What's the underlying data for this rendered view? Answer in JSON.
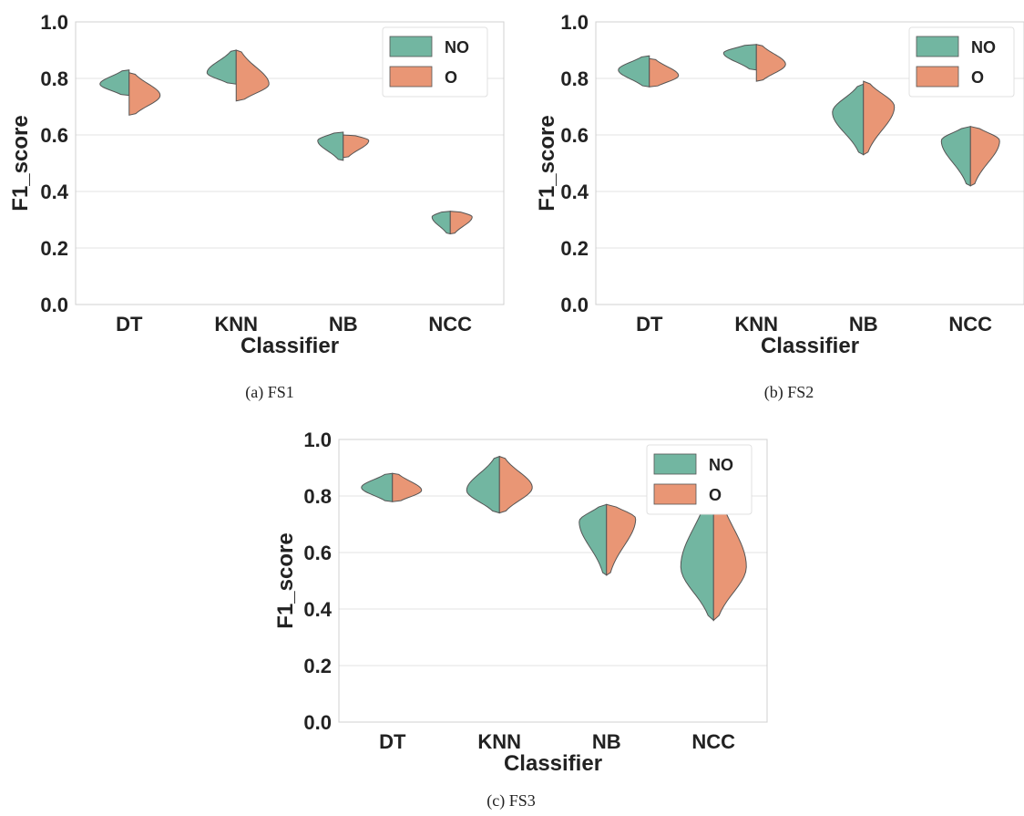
{
  "colors": {
    "NO": "#72b6a1",
    "O": "#e99675"
  },
  "chart_data": [
    {
      "type": "violin",
      "caption": "(a)  FS1",
      "xlabel": "Classifier",
      "ylabel": "F1_score",
      "ylim": [
        0.0,
        1.0
      ],
      "yticks": [
        "0.0",
        "0.2",
        "0.4",
        "0.6",
        "0.8",
        "1.0"
      ],
      "categories": [
        "DT",
        "KNN",
        "NB",
        "NCC"
      ],
      "legend": {
        "placement": "top-right",
        "entries": [
          "NO",
          "O"
        ]
      },
      "grid": true,
      "series": [
        {
          "name": "NO",
          "violins": [
            {
              "min": 0.74,
              "max": 0.83,
              "peak": 0.78,
              "width": 0.8
            },
            {
              "min": 0.78,
              "max": 0.9,
              "peak": 0.82,
              "width": 0.8
            },
            {
              "min": 0.51,
              "max": 0.61,
              "peak": 0.58,
              "width": 0.7
            },
            {
              "min": 0.25,
              "max": 0.33,
              "peak": 0.31,
              "width": 0.5
            }
          ]
        },
        {
          "name": "O",
          "violins": [
            {
              "min": 0.67,
              "max": 0.82,
              "peak": 0.74,
              "width": 0.85
            },
            {
              "min": 0.72,
              "max": 0.9,
              "peak": 0.78,
              "width": 0.9
            },
            {
              "min": 0.52,
              "max": 0.6,
              "peak": 0.58,
              "width": 0.7
            },
            {
              "min": 0.25,
              "max": 0.33,
              "peak": 0.31,
              "width": 0.6
            }
          ]
        }
      ]
    },
    {
      "type": "violin",
      "caption": "(b)  FS2",
      "xlabel": "Classifier",
      "ylabel": "F1_score",
      "ylim": [
        0.0,
        1.0
      ],
      "yticks": [
        "0.0",
        "0.2",
        "0.4",
        "0.6",
        "0.8",
        "1.0"
      ],
      "categories": [
        "DT",
        "KNN",
        "NB",
        "NCC"
      ],
      "legend": {
        "placement": "top-right",
        "entries": [
          "NO",
          "O"
        ]
      },
      "grid": true,
      "series": [
        {
          "name": "NO",
          "violins": [
            {
              "min": 0.77,
              "max": 0.88,
              "peak": 0.83,
              "width": 0.85
            },
            {
              "min": 0.83,
              "max": 0.92,
              "peak": 0.89,
              "width": 0.9
            },
            {
              "min": 0.53,
              "max": 0.78,
              "peak": 0.68,
              "width": 0.85
            },
            {
              "min": 0.42,
              "max": 0.63,
              "peak": 0.58,
              "width": 0.8
            }
          ]
        },
        {
          "name": "O",
          "violins": [
            {
              "min": 0.77,
              "max": 0.87,
              "peak": 0.81,
              "width": 0.8
            },
            {
              "min": 0.79,
              "max": 0.92,
              "peak": 0.85,
              "width": 0.8
            },
            {
              "min": 0.53,
              "max": 0.79,
              "peak": 0.7,
              "width": 0.85
            },
            {
              "min": 0.42,
              "max": 0.63,
              "peak": 0.58,
              "width": 0.8
            }
          ]
        }
      ]
    },
    {
      "type": "violin",
      "caption": "(c)  FS3",
      "xlabel": "Classifier",
      "ylabel": "F1_score",
      "ylim": [
        0.0,
        1.0
      ],
      "yticks": [
        "0.0",
        "0.2",
        "0.4",
        "0.6",
        "0.8",
        "1.0"
      ],
      "categories": [
        "DT",
        "KNN",
        "NB",
        "NCC"
      ],
      "legend": {
        "placement": "top-right",
        "entries": [
          "NO",
          "O"
        ]
      },
      "grid": true,
      "series": [
        {
          "name": "NO",
          "violins": [
            {
              "min": 0.78,
              "max": 0.88,
              "peak": 0.83,
              "width": 0.85
            },
            {
              "min": 0.74,
              "max": 0.94,
              "peak": 0.82,
              "width": 0.9
            },
            {
              "min": 0.52,
              "max": 0.77,
              "peak": 0.71,
              "width": 0.75
            },
            {
              "min": 0.36,
              "max": 0.84,
              "peak": 0.55,
              "width": 0.9
            }
          ]
        },
        {
          "name": "O",
          "violins": [
            {
              "min": 0.78,
              "max": 0.88,
              "peak": 0.82,
              "width": 0.8
            },
            {
              "min": 0.74,
              "max": 0.94,
              "peak": 0.83,
              "width": 0.9
            },
            {
              "min": 0.52,
              "max": 0.77,
              "peak": 0.72,
              "width": 0.8
            },
            {
              "min": 0.36,
              "max": 0.84,
              "peak": 0.55,
              "width": 0.9
            }
          ]
        }
      ]
    }
  ]
}
